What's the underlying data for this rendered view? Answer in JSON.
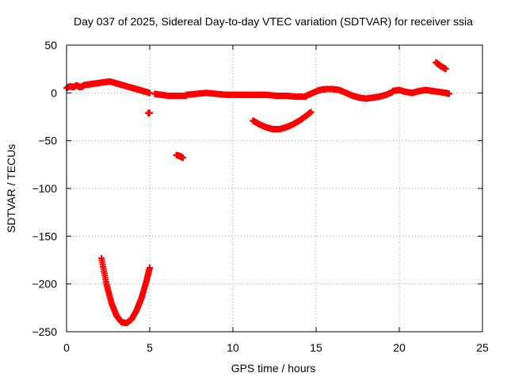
{
  "chart_data": {
    "type": "scatter",
    "title": "Day 037 of 2025, Sidereal Day-to-day VTEC variation (SDTVAR) for receiver ssia",
    "xlabel": "GPS time / hours",
    "ylabel": "SDTVAR / TECUs",
    "xlim": [
      0,
      25
    ],
    "ylim": [
      -250,
      50
    ],
    "x_ticks": [
      0,
      5,
      10,
      15,
      20,
      25
    ],
    "y_ticks": [
      50,
      0,
      -50,
      -100,
      -150,
      -200,
      -250
    ],
    "grid": true,
    "marker": "+",
    "series": [
      {
        "name": "SDTVAR",
        "color": "#ff0000",
        "segments": [
          {
            "x": [
              0.0,
              0.2,
              0.4,
              0.6,
              0.8,
              1.0
            ],
            "y": [
              5,
              7,
              6,
              8,
              6,
              7
            ]
          },
          {
            "x": [
              1.0,
              1.4,
              1.8,
              2.2,
              2.6,
              3.0,
              3.4,
              3.8,
              4.2,
              4.6,
              5.0
            ],
            "y": [
              8,
              9,
              10,
              11,
              12,
              10,
              8,
              6,
              4,
              2,
              0
            ]
          },
          {
            "x": [
              5.3,
              5.7,
              6.1,
              6.5,
              6.9,
              7.2
            ],
            "y": [
              -1,
              -2,
              -3,
              -3,
              -3,
              -3
            ]
          },
          {
            "x": [
              7.2,
              7.8,
              8.4,
              9.0,
              9.6,
              10.2,
              10.8,
              11.4,
              12.0,
              12.6,
              13.2,
              13.8,
              14.4
            ],
            "y": [
              -2,
              -1,
              0,
              -1,
              -2,
              -2,
              -2,
              -2,
              -2,
              -3,
              -3,
              -4,
              -4
            ]
          },
          {
            "x": [
              14.4,
              14.8,
              15.2,
              15.6,
              16.0,
              16.4,
              16.8,
              17.2,
              17.6,
              18.0,
              18.4,
              18.8,
              19.2,
              19.6
            ],
            "y": [
              -3,
              0,
              3,
              4,
              4,
              3,
              0,
              -3,
              -5,
              -6,
              -5,
              -4,
              -2,
              1
            ]
          },
          {
            "x": [
              19.6,
              20.0,
              20.4,
              20.8,
              21.2,
              21.6,
              22.0,
              22.4,
              22.8,
              23.0
            ],
            "y": [
              2,
              3,
              1,
              0,
              2,
              3,
              2,
              1,
              0,
              -1
            ]
          },
          {
            "x": [
              4.9,
              5.0
            ],
            "y": [
              -21,
              -21
            ]
          },
          {
            "x": [
              6.6,
              6.8,
              7.0
            ],
            "y": [
              -65,
              -66,
              -68
            ]
          },
          {
            "x": [
              11.2,
              11.6,
              12.0,
              12.4,
              12.8,
              13.2,
              13.6,
              14.0,
              14.4,
              14.7
            ],
            "y": [
              -29,
              -33,
              -36,
              -38,
              -38,
              -36,
              -33,
              -29,
              -24,
              -20
            ]
          },
          {
            "x": [
              22.2,
              22.5,
              22.8
            ],
            "y": [
              32,
              28,
              25
            ]
          },
          {
            "x": [
              2.1,
              2.4,
              2.7,
              3.0,
              3.3,
              3.6,
              3.9,
              4.2,
              4.5,
              4.8,
              5.0
            ],
            "y": [
              -173,
              -200,
              -220,
              -233,
              -240,
              -241,
              -237,
              -228,
              -215,
              -197,
              -183
            ]
          }
        ]
      }
    ]
  }
}
